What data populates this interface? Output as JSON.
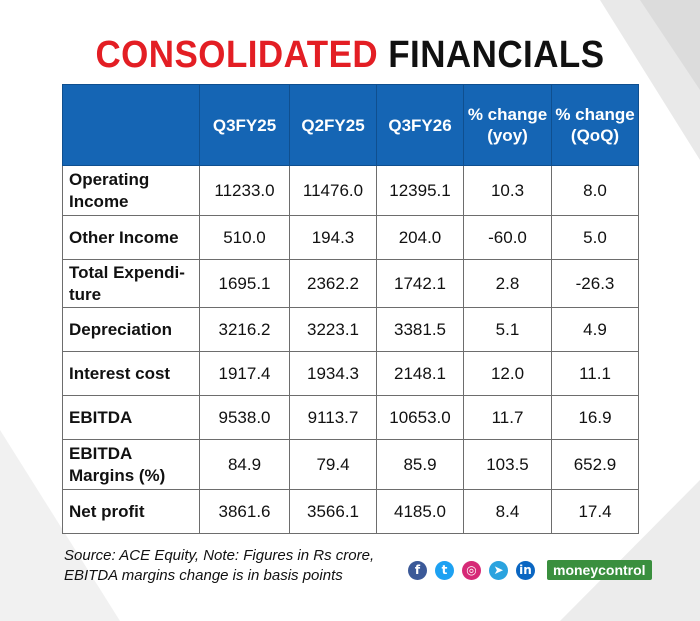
{
  "title": {
    "part1": "CONSOLIDATED",
    "part2": "FINANCIALS",
    "part1_color": "#e31e24",
    "part2_color": "#111111"
  },
  "table": {
    "header_color": "#1565b4",
    "columns": [
      "",
      "Q3FY25",
      "Q2FY25",
      "Q3FY26",
      "% change (yoy)",
      "% change (QoQ)"
    ],
    "rows": [
      {
        "label": "Operating Income",
        "values": [
          "11233.0",
          "11476.0",
          "12395.1",
          "10.3",
          "8.0"
        ]
      },
      {
        "label": "Other Income",
        "values": [
          "510.0",
          "194.3",
          "204.0",
          "-60.0",
          "5.0"
        ]
      },
      {
        "label": "Total Expendi-ture",
        "values": [
          "1695.1",
          "2362.2",
          "1742.1",
          "2.8",
          "-26.3"
        ]
      },
      {
        "label": "Depreciation",
        "values": [
          "3216.2",
          "3223.1",
          "3381.5",
          "5.1",
          "4.9"
        ]
      },
      {
        "label": "Interest cost",
        "values": [
          "1917.4",
          "1934.3",
          "2148.1",
          "12.0",
          "11.1"
        ]
      },
      {
        "label": "EBITDA",
        "values": [
          "9538.0",
          "9113.7",
          "10653.0",
          "11.7",
          "16.9"
        ]
      },
      {
        "label": "EBITDA Margins (%)",
        "values": [
          "84.9",
          "79.4",
          "85.9",
          "103.5",
          "652.9"
        ]
      },
      {
        "label": "Net profit",
        "values": [
          "3861.6",
          "3566.1",
          "4185.0",
          "8.4",
          "17.4"
        ]
      }
    ]
  },
  "source": {
    "line1": "Source: ACE Equity, Note: Figures in Rs crore,",
    "line2": "EBITDA margins change is in basis points"
  },
  "social_icons": [
    {
      "name": "facebook-icon",
      "glyph": "f",
      "color": "#3b5998"
    },
    {
      "name": "twitter-icon",
      "glyph": "t",
      "color": "#1da1f2"
    },
    {
      "name": "instagram-icon",
      "glyph": "◎",
      "color": "#d62976"
    },
    {
      "name": "telegram-icon",
      "glyph": "➤",
      "color": "#2aa3df"
    },
    {
      "name": "linkedin-icon",
      "glyph": "in",
      "color": "#0a66c2"
    }
  ],
  "brand": "moneycontrol"
}
